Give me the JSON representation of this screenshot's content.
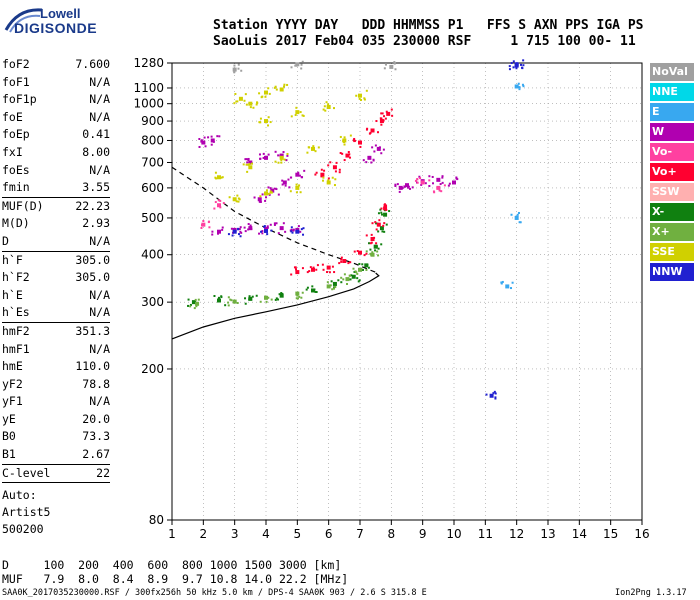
{
  "header": {
    "logo_top": "Lowell",
    "logo_bottom": "DIGISONDE",
    "line1": "Station YYYY DAY   DDD HHMMSS P1   FFS S AXN PPS IGA PS",
    "line2": "SaoLuis 2017 Feb04 035 230000 RSF     1 715 100 00- 11"
  },
  "params": [
    [
      {
        "k": "foF2",
        "v": "7.600"
      },
      {
        "k": "foF1",
        "v": "N/A"
      },
      {
        "k": "foF1p",
        "v": "N/A"
      },
      {
        "k": "foE",
        "v": "N/A"
      },
      {
        "k": "foEp",
        "v": "0.41"
      },
      {
        "k": "fxI",
        "v": "8.00"
      },
      {
        "k": "foEs",
        "v": "N/A"
      },
      {
        "k": "fmin",
        "v": "3.55"
      }
    ],
    [
      {
        "k": "MUF(D)",
        "v": "22.23"
      },
      {
        "k": "M(D)",
        "v": "2.93"
      },
      {
        "k": "D",
        "v": "N/A"
      }
    ],
    [
      {
        "k": "h`F",
        "v": "305.0"
      },
      {
        "k": "h`F2",
        "v": "305.0"
      },
      {
        "k": "h`E",
        "v": "N/A"
      },
      {
        "k": "h`Es",
        "v": "N/A"
      }
    ],
    [
      {
        "k": "hmF2",
        "v": "351.3"
      },
      {
        "k": "hmF1",
        "v": "N/A"
      },
      {
        "k": "hmE",
        "v": "110.0"
      },
      {
        "k": "yF2",
        "v": "78.8"
      },
      {
        "k": "yF1",
        "v": "N/A"
      },
      {
        "k": "yE",
        "v": "20.0"
      },
      {
        "k": "B0",
        "v": "73.3"
      },
      {
        "k": "B1",
        "v": "2.67"
      }
    ],
    [
      {
        "k": "C-level",
        "v": "22"
      }
    ]
  ],
  "auto": {
    "line1": "Auto:",
    "line2": "Artist5",
    "line3": "500200"
  },
  "legend": [
    {
      "label": "NoVal",
      "color": "#a0a0a0"
    },
    {
      "label": "NNE",
      "color": "#00d8e8"
    },
    {
      "label": "E",
      "color": "#38a8f0"
    },
    {
      "label": "W",
      "color": "#b000b0"
    },
    {
      "label": "Vo-",
      "color": "#ff40a0"
    },
    {
      "label": "Vo+",
      "color": "#ff0030"
    },
    {
      "label": "SSW",
      "color": "#ffb0b0"
    },
    {
      "label": "X-",
      "color": "#108010"
    },
    {
      "label": "X+",
      "color": "#70b040"
    },
    {
      "label": "SSE",
      "color": "#d0d000"
    },
    {
      "label": "NNW",
      "color": "#2020d0"
    }
  ],
  "bottom": {
    "d_row": "D     100  200  400  600  800 1000 1500 3000 [km]",
    "muf_row": "MUF   7.9  8.0  8.4  8.9  9.7 10.8 14.0 22.2 [MHz]"
  },
  "footer": "SAA0K_2017035230000.RSF / 300fx256h 50 kHz 5.0 km / DPS-4 SAA0K 903 / 2.6 S 315.8 E",
  "version": "Ion2Png 1.3.17",
  "chart_data": {
    "type": "scatter",
    "title": "",
    "xlabel": "",
    "ylabel": "",
    "xlim": [
      1,
      16
    ],
    "ylim": [
      80,
      1280
    ],
    "x_ticks": [
      1,
      2,
      3,
      4,
      5,
      6,
      7,
      8,
      9,
      10,
      11,
      12,
      13,
      14,
      15,
      16
    ],
    "y_ticks": [
      80,
      200,
      300,
      400,
      500,
      600,
      700,
      800,
      900,
      1000,
      1100,
      1280
    ],
    "y_scale": "log",
    "grid": "dotted",
    "series": [
      {
        "name": "X-",
        "color": "#108010",
        "points": [
          [
            1.7,
            300
          ],
          [
            2.5,
            303
          ],
          [
            3.5,
            306
          ],
          [
            4.5,
            312
          ],
          [
            5.5,
            322
          ],
          [
            6.2,
            335
          ],
          [
            6.8,
            350
          ],
          [
            7.2,
            375
          ],
          [
            7.5,
            420
          ],
          [
            7.7,
            470
          ],
          [
            7.8,
            510
          ]
        ]
      },
      {
        "name": "X+",
        "color": "#70b040",
        "points": [
          [
            1.8,
            297
          ],
          [
            3.0,
            301
          ],
          [
            4.0,
            308
          ],
          [
            5.0,
            316
          ],
          [
            6.0,
            330
          ],
          [
            6.6,
            345
          ],
          [
            7.0,
            365
          ],
          [
            7.4,
            400
          ]
        ]
      },
      {
        "name": "Vo+",
        "color": "#ff0030",
        "points": [
          [
            5.0,
            360
          ],
          [
            5.5,
            365
          ],
          [
            6.0,
            370
          ],
          [
            6.5,
            385
          ],
          [
            7.0,
            405
          ],
          [
            7.4,
            440
          ],
          [
            7.6,
            480
          ],
          [
            7.8,
            530
          ],
          [
            5.8,
            650
          ],
          [
            6.2,
            680
          ],
          [
            6.6,
            730
          ],
          [
            7.0,
            790
          ],
          [
            7.4,
            850
          ],
          [
            7.7,
            900
          ],
          [
            7.9,
            940
          ]
        ]
      },
      {
        "name": "W",
        "color": "#b000b0",
        "points": [
          [
            2.5,
            460
          ],
          [
            3.0,
            465
          ],
          [
            3.5,
            470
          ],
          [
            4.0,
            468
          ],
          [
            4.5,
            470
          ],
          [
            5.0,
            465
          ],
          [
            3.8,
            560
          ],
          [
            4.2,
            590
          ],
          [
            4.6,
            620
          ],
          [
            5.0,
            650
          ],
          [
            3.5,
            700
          ],
          [
            4.0,
            720
          ],
          [
            4.5,
            730
          ],
          [
            8.5,
            610
          ],
          [
            9.0,
            625
          ],
          [
            9.5,
            630
          ],
          [
            10.0,
            620
          ],
          [
            8.3,
            600
          ],
          [
            2.0,
            790
          ],
          [
            2.3,
            800
          ],
          [
            7.3,
            720
          ],
          [
            7.6,
            760
          ]
        ]
      },
      {
        "name": "SSE",
        "color": "#d0d000",
        "points": [
          [
            3.0,
            560
          ],
          [
            4.0,
            580
          ],
          [
            5.0,
            600
          ],
          [
            6.0,
            620
          ],
          [
            2.5,
            640
          ],
          [
            3.5,
            680
          ],
          [
            4.5,
            720
          ],
          [
            5.5,
            760
          ],
          [
            6.5,
            800
          ],
          [
            4.0,
            900
          ],
          [
            5.0,
            950
          ],
          [
            6.0,
            980
          ],
          [
            7.0,
            1050
          ],
          [
            4.0,
            1070
          ],
          [
            4.5,
            1090
          ],
          [
            3.5,
            1000
          ],
          [
            3.2,
            1030
          ]
        ]
      },
      {
        "name": "NNW",
        "color": "#2020d0",
        "points": [
          [
            3.0,
            460
          ],
          [
            4.0,
            462
          ],
          [
            5.0,
            460
          ],
          [
            12.0,
            1270
          ],
          [
            12.0,
            1260
          ],
          [
            11.2,
            170
          ]
        ]
      },
      {
        "name": "Vo-",
        "color": "#ff40a0",
        "points": [
          [
            2.0,
            480
          ],
          [
            2.5,
            540
          ],
          [
            9.0,
            620
          ],
          [
            9.5,
            600
          ]
        ]
      },
      {
        "name": "E",
        "color": "#38a8f0",
        "points": [
          [
            12.0,
            1110
          ],
          [
            11.7,
            330
          ],
          [
            12.0,
            500
          ]
        ]
      },
      {
        "name": "NoVal",
        "color": "#a0a0a0",
        "points": [
          [
            3.0,
            1230
          ],
          [
            5.0,
            1270
          ],
          [
            8.0,
            1250
          ]
        ]
      }
    ],
    "curves": [
      {
        "name": "trace",
        "style": "solid",
        "points": [
          [
            1,
            240
          ],
          [
            2,
            258
          ],
          [
            3,
            272
          ],
          [
            4,
            283
          ],
          [
            5,
            295
          ],
          [
            6,
            310
          ],
          [
            6.8,
            325
          ],
          [
            7.3,
            340
          ],
          [
            7.6,
            352
          ],
          [
            7.5,
            358
          ]
        ]
      },
      {
        "name": "profile",
        "style": "dashed",
        "points": [
          [
            1,
            680
          ],
          [
            2,
            600
          ],
          [
            3,
            520
          ],
          [
            4,
            470
          ],
          [
            5,
            430
          ],
          [
            6,
            400
          ],
          [
            6.8,
            380
          ],
          [
            7.3,
            365
          ],
          [
            7.6,
            357
          ]
        ]
      }
    ]
  }
}
